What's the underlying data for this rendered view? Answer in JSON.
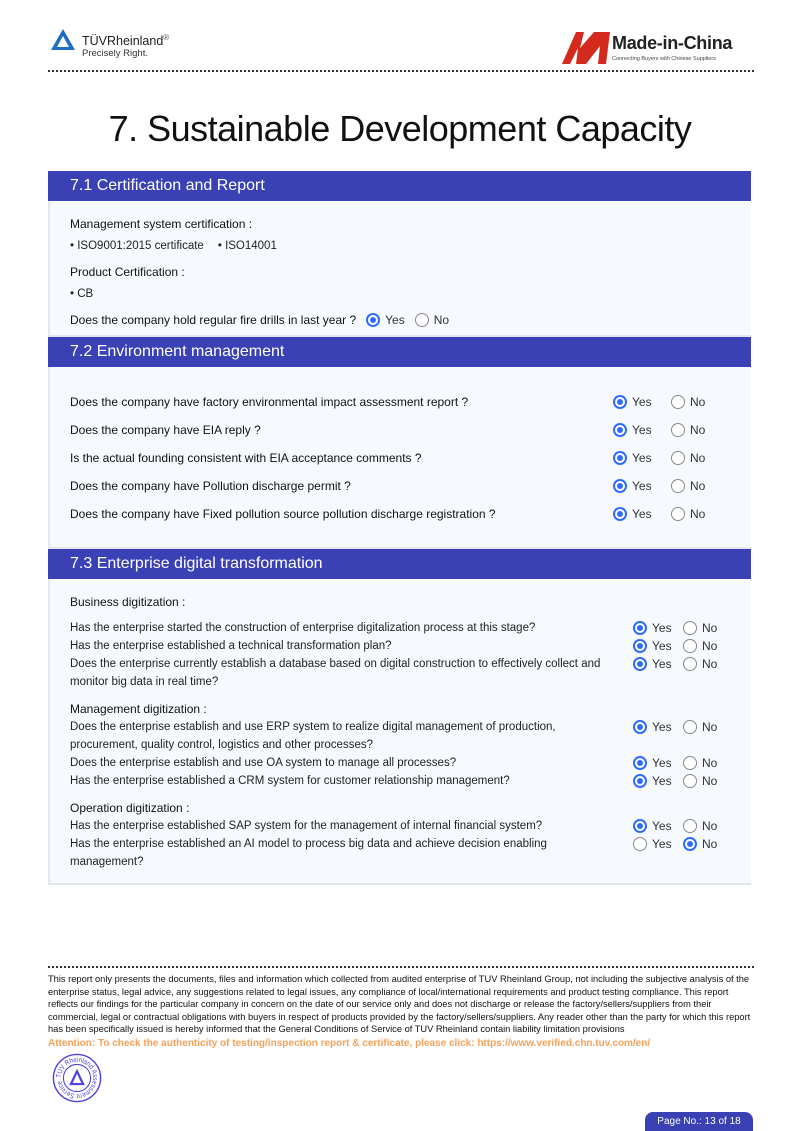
{
  "header": {
    "tuv_name": "TÜVRheinland",
    "tuv_reg": "®",
    "tuv_tagline": "Precisely Right.",
    "mic_name": "Made-in-China",
    "mic_tagline": "Connecting Buyers with Chinese Suppliers"
  },
  "title": "7. Sustainable Development Capacity",
  "s1": {
    "heading": "7.1 Certification and Report",
    "mgmt_label": "Management system certification :",
    "mgmt_items": [
      "ISO9001:2015 certificate",
      "ISO14001"
    ],
    "prod_label": "Product Certification :",
    "prod_items": [
      "CB"
    ],
    "fire_q": "Does the company hold regular fire drills in last year ?",
    "fire_answer": "Yes"
  },
  "yes": "Yes",
  "no": "No",
  "s2": {
    "heading": "7.2 Environment management",
    "rows": [
      {
        "q": "Does the company have factory environmental impact assessment report ?",
        "answer": "Yes"
      },
      {
        "q": "Does the company have EIA reply ?",
        "answer": "Yes"
      },
      {
        "q": "Is the actual founding consistent with EIA acceptance comments ?",
        "answer": "Yes"
      },
      {
        "q": "Does the company have Pollution discharge permit ?",
        "answer": "Yes"
      },
      {
        "q": "Does the company have Fixed pollution source pollution discharge registration ?",
        "answer": "Yes"
      }
    ]
  },
  "s3": {
    "heading": "7.3 Enterprise digital transformation",
    "business_label": "Business digitization :",
    "business": [
      {
        "q": "Has the enterprise started the construction of enterprise digitalization process at this stage?",
        "answer": "Yes"
      },
      {
        "q": "Has the enterprise established a technical transformation plan?",
        "answer": "Yes"
      },
      {
        "q": "Does the enterprise currently establish a database based on digital construction to effectively collect",
        "q2": "and monitor big data in real time?",
        "answer": "Yes"
      }
    ],
    "management_label": "Management digitization :",
    "management": [
      {
        "q": "Does the enterprise establish and use ERP system to realize digital management of production,",
        "q2": "procurement, quality control, logistics and other processes?",
        "answer": "Yes"
      },
      {
        "q": "Does the enterprise establish and use OA system to manage all processes?",
        "answer": "Yes"
      },
      {
        "q": "Has the enterprise established a CRM system for customer relationship management?",
        "answer": "Yes"
      }
    ],
    "operation_label": "Operation digitization :",
    "operation": [
      {
        "q": "Has the enterprise established SAP system for the management of internal financial system?",
        "answer": "Yes"
      },
      {
        "q": "Has the enterprise established an AI model to process big data and achieve decision enabling",
        "q2": "management?",
        "answer": "No"
      }
    ]
  },
  "footer": {
    "disclaimer": "This report only presents the documents, files and information which collected from audited enterprise of TUV Rheinland Group, not including the subjective analysis of the enterprise status, legal advice, any suggestions related to legal issues, any compliance of local/international requirements and product testing compliance. This report reflects our findings for the particular company in concern on the date of our service only and does not discharge or release the factory/sellers/suppliers from their commercial, legal or contractual obligations with buyers in respect of products provided by the factory/sellers/suppliers. Any reader other than the party for which this report has been specifically issued is hereby informed that the General Conditions of Service of TUV Rheinland contain liability limitation provisions",
    "attention": "Attention: To check the authenticity of testing/inspection report & certificate, please click:  https://www.verified.chn.tuv.com/en/",
    "stamp_text": "TUV Rheinland Assessment Service",
    "page": "Page No.: 13 of 18"
  },
  "colors": {
    "accent": "#3a41b4",
    "radio": "#2f6bff",
    "attention": "#f6a15a"
  }
}
